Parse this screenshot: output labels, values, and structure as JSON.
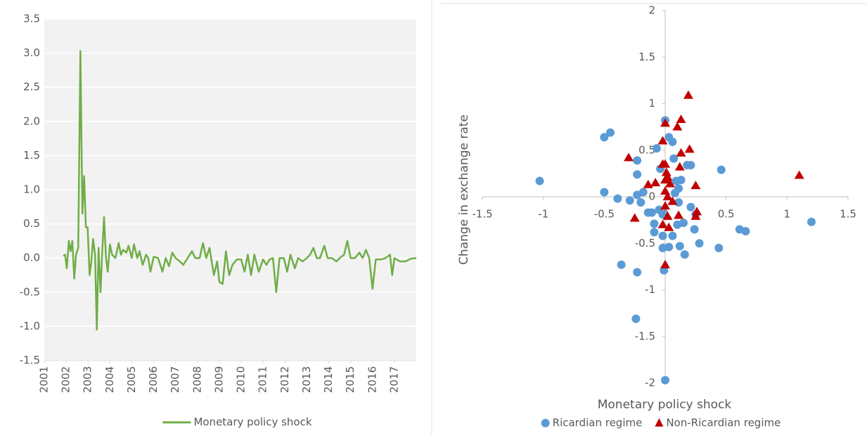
{
  "chart_data": [
    {
      "type": "line",
      "xlim": [
        2001,
        2018
      ],
      "xticks": [
        2001,
        2002,
        2003,
        2004,
        2005,
        2006,
        2007,
        2008,
        2009,
        2010,
        2011,
        2012,
        2013,
        2014,
        2015,
        2016,
        2017
      ],
      "ylim": [
        -1.5,
        3.5
      ],
      "yticks": [
        -1.5,
        {
          "value": -1,
          "label": "-1.0"
        },
        -0.5,
        {
          "value": 0,
          "label": "0.0"
        },
        0.5,
        {
          "value": 1,
          "label": "1.0"
        },
        1.5,
        {
          "value": 2,
          "label": "2.0"
        },
        2.5,
        {
          "value": 3,
          "label": "3.0"
        },
        3.5
      ],
      "grid": true,
      "legend": "bottom",
      "series": [
        {
          "name": "Monetary policy shock",
          "color": "#70ad47",
          "x": [
            2001.87,
            2001.95,
            2002.03,
            2002.12,
            2002.2,
            2002.28,
            2002.37,
            2002.45,
            2002.55,
            2002.65,
            2002.74,
            2002.82,
            2002.9,
            2002.98,
            2003.07,
            2003.15,
            2003.23,
            2003.32,
            2003.4,
            2003.48,
            2003.57,
            2003.65,
            2003.73,
            2003.82,
            2003.9,
            2004.0,
            2004.1,
            2004.25,
            2004.4,
            2004.5,
            2004.6,
            2004.75,
            2004.85,
            2005.0,
            2005.1,
            2005.25,
            2005.35,
            2005.5,
            2005.65,
            2005.75,
            2005.85,
            2006.0,
            2006.2,
            2006.4,
            2006.55,
            2006.7,
            2006.85,
            2007.0,
            2007.2,
            2007.35,
            2007.55,
            2007.75,
            2007.9,
            2008.1,
            2008.25,
            2008.4,
            2008.55,
            2008.75,
            2008.9,
            2009.0,
            2009.15,
            2009.3,
            2009.45,
            2009.6,
            2009.8,
            2010.0,
            2010.15,
            2010.3,
            2010.45,
            2010.6,
            2010.8,
            2011.0,
            2011.15,
            2011.3,
            2011.45,
            2011.6,
            2011.75,
            2011.95,
            2012.1,
            2012.25,
            2012.45,
            2012.6,
            2012.8,
            2013.0,
            2013.15,
            2013.3,
            2013.45,
            2013.6,
            2013.8,
            2013.95,
            2014.15,
            2014.35,
            2014.5,
            2014.7,
            2014.85,
            2015.0,
            2015.2,
            2015.4,
            2015.55,
            2015.7,
            2015.85,
            2016.0,
            2016.15,
            2016.4,
            2016.6,
            2016.8,
            2016.9,
            2017.0,
            2017.25,
            2017.5,
            2017.75,
            2018.0
          ],
          "values": [
            0.03,
            0.05,
            -0.15,
            0.25,
            0.1,
            0.25,
            -0.3,
            0.05,
            0.15,
            3.03,
            0.65,
            1.2,
            0.45,
            0.45,
            -0.25,
            -0.05,
            0.28,
            0.05,
            -1.05,
            0.15,
            -0.5,
            0.1,
            0.6,
            0.0,
            -0.2,
            0.2,
            0.05,
            0.0,
            0.22,
            0.05,
            0.12,
            0.08,
            0.18,
            0.0,
            0.2,
            0.0,
            0.1,
            -0.1,
            0.05,
            0.0,
            -0.2,
            0.02,
            0.0,
            -0.2,
            0.0,
            -0.12,
            0.08,
            0.0,
            -0.05,
            -0.1,
            0.0,
            0.1,
            0.0,
            0.0,
            0.22,
            0.0,
            0.15,
            -0.25,
            -0.05,
            -0.35,
            -0.38,
            0.1,
            -0.25,
            -0.1,
            -0.02,
            -0.02,
            -0.2,
            0.05,
            -0.25,
            0.05,
            -0.2,
            -0.02,
            -0.1,
            -0.02,
            0.0,
            -0.5,
            0.0,
            0.0,
            -0.2,
            0.05,
            -0.15,
            0.0,
            -0.05,
            0.0,
            0.05,
            0.15,
            0.0,
            0.0,
            0.18,
            0.0,
            0.0,
            -0.05,
            0.0,
            0.05,
            0.25,
            0.0,
            0.0,
            0.08,
            0.0,
            0.12,
            0.0,
            -0.45,
            -0.02,
            -0.02,
            0.0,
            0.05,
            -0.25,
            0.0,
            -0.05,
            -0.05,
            -0.01,
            0.0
          ]
        }
      ]
    },
    {
      "type": "scatter",
      "x_label": "Monetary policy shock",
      "y_label": "Change in exchange rate",
      "xlim": [
        -1.5,
        1.5
      ],
      "xticks": [
        -1.5,
        -1,
        -0.5,
        0,
        0.5,
        1,
        1.5
      ],
      "ylim": [
        -2,
        2
      ],
      "yticks": [
        -2,
        -1.5,
        -1,
        -0.5,
        0,
        0.5,
        1,
        1.5,
        2
      ],
      "legend": "bottom",
      "series": [
        {
          "name": "Ricardian regime",
          "color": "#5b9bd5",
          "marker": "circle",
          "x": [
            -1.03,
            -0.5,
            -0.45,
            -0.5,
            -0.39,
            -0.29,
            -0.36,
            -0.23,
            -0.24,
            -0.23,
            -0.23,
            -0.23,
            -0.2,
            -0.18,
            -0.14,
            -0.11,
            -0.09,
            -0.09,
            -0.07,
            -0.04,
            -0.05,
            -0.02,
            0,
            -0.02,
            -0.02,
            -0.01,
            0,
            0.03,
            0.06,
            0.07,
            0.06,
            0.03,
            0.08,
            0.09,
            0.11,
            0.11,
            0.1,
            0.12,
            0.13,
            0.15,
            0.16,
            0.18,
            0.21,
            0.21,
            0.24,
            0.25,
            0.28,
            0.46,
            0.44,
            0.61,
            0.66,
            1.2
          ],
          "values": [
            0.17,
            0.64,
            0.69,
            0.05,
            -0.02,
            -0.04,
            -0.73,
            -0.81,
            -1.31,
            0.39,
            0.24,
            0.02,
            -0.06,
            0.05,
            -0.17,
            -0.17,
            -0.29,
            -0.38,
            0.52,
            0.3,
            -0.14,
            -0.19,
            0.82,
            -0.42,
            -0.55,
            -0.79,
            -1.97,
            0.64,
            0.59,
            0.41,
            -0.42,
            -0.54,
            0.04,
            0.17,
            0.09,
            -0.06,
            -0.3,
            -0.53,
            0.18,
            -0.28,
            -0.62,
            0.34,
            0.34,
            -0.11,
            -0.35,
            -0.19,
            -0.5,
            0.29,
            -0.55,
            -0.35,
            -0.37,
            -0.27
          ]
        },
        {
          "name": "Non-Ricardian regime",
          "color": "#c00000",
          "marker": "triangle",
          "x": [
            0,
            -0.02,
            -0.3,
            -0.25,
            -0.14,
            -0.08,
            -0.02,
            0,
            0.01,
            0.02,
            0,
            0.04,
            0,
            0.02,
            0,
            0.02,
            -0.02,
            0.03,
            0,
            0.1,
            0.13,
            0.13,
            0.12,
            0.11,
            0.19,
            0.2,
            0.25,
            0.26,
            0.25,
            1.1,
            0.06
          ],
          "values": [
            0.79,
            0.6,
            0.42,
            -0.23,
            0.13,
            0.15,
            0.35,
            0.35,
            0.26,
            0.21,
            0.18,
            0.14,
            0.06,
            0.0,
            -0.1,
            -0.21,
            -0.3,
            -0.33,
            -0.73,
            0.75,
            0.83,
            0.47,
            0.32,
            -0.2,
            1.09,
            0.51,
            0.12,
            -0.16,
            -0.21,
            0.23,
            -0.05
          ]
        }
      ]
    }
  ]
}
